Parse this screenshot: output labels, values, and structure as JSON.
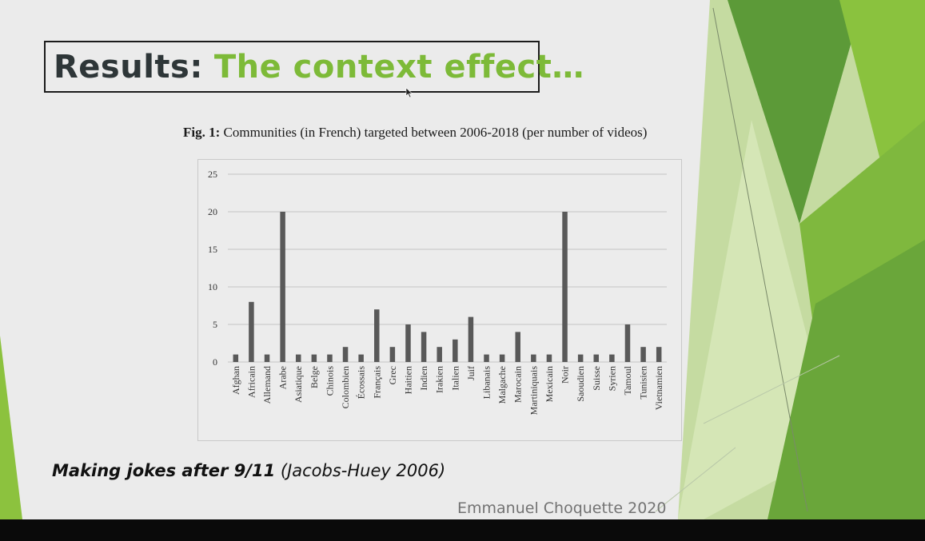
{
  "slide": {
    "title_dark": "Results:",
    "title_green": "The context effect…",
    "fig_label": "Fig. 1:",
    "fig_caption": "Communities (in French) targeted between 2006-2018 (per number of videos)",
    "citation_bold": "Making jokes after 9/11",
    "citation_rest": "(Jacobs-Huey 2006)",
    "author": "Emmanuel Choquette 2020"
  },
  "colors": {
    "green_accent": "#7dba38",
    "bar": "#595959",
    "title_dark": "#2e3638"
  },
  "chart_data": {
    "type": "bar",
    "categories": [
      "Afghan",
      "Africain",
      "Allemand",
      "Arabe",
      "Asiatique",
      "Belge",
      "Chinois",
      "Colombien",
      "Écossais",
      "Français",
      "Grec",
      "Haitien",
      "Indien",
      "Irakien",
      "Italien",
      "Juif",
      "Libanais",
      "Malgache",
      "Marocain",
      "Martiniquais",
      "Mexicain",
      "Noir",
      "Saoudien",
      "Suisse",
      "Syrien",
      "Tamoul",
      "Tunisien",
      "Vietnamien"
    ],
    "values": [
      1,
      8,
      1,
      20,
      1,
      1,
      1,
      2,
      1,
      7,
      2,
      5,
      4,
      2,
      3,
      6,
      1,
      1,
      4,
      1,
      1,
      20,
      1,
      1,
      1,
      5,
      2,
      2
    ],
    "yticks": [
      "0",
      "5",
      "10",
      "15",
      "20",
      "25"
    ],
    "ylim": [
      0,
      25
    ],
    "grid": true,
    "legend": "none",
    "title": "",
    "xlabel": "",
    "ylabel": ""
  }
}
